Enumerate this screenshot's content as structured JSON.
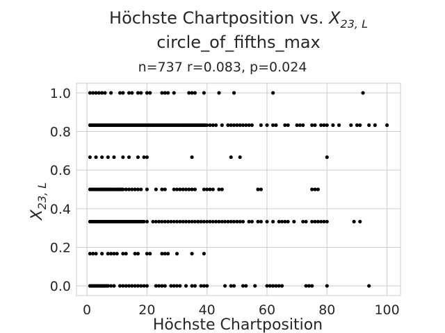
{
  "chart_data": {
    "type": "scatter",
    "title_prefix": "Höchste Chartposition vs. ",
    "title_var": "X",
    "title_sub": "23, L",
    "title_line2": "circle_of_fifths_max",
    "subtitle": "n=737 r=0.083, p=0.024",
    "xlabel": "Höchste Chartposition",
    "ylabel_var": "X",
    "ylabel_sub": "23, L",
    "xlim": [
      -3.5,
      104.5
    ],
    "ylim": [
      -0.05,
      1.05
    ],
    "xticks": [
      0,
      20,
      40,
      60,
      80,
      100
    ],
    "yticks": [
      0.0,
      0.2,
      0.4,
      0.6,
      0.8,
      1.0
    ],
    "ytick_labels": [
      "0.0",
      "0.2",
      "0.4",
      "0.6",
      "0.8",
      "1.0"
    ],
    "grid": true,
    "marker_color": "#000000",
    "series": [
      {
        "y": 1.0,
        "x": [
          1,
          2,
          3,
          4,
          5,
          6,
          8,
          11,
          12,
          14,
          15,
          17,
          18,
          20,
          21,
          25,
          26,
          27,
          29,
          34,
          35,
          36,
          39,
          44,
          49,
          62,
          92
        ]
      },
      {
        "y": 0.833,
        "x": [
          1,
          1.5,
          2,
          2.5,
          3,
          3.5,
          4,
          4.5,
          5,
          5.5,
          6,
          6.5,
          7,
          7.5,
          8,
          8.5,
          9,
          9.5,
          10,
          10.5,
          11,
          11.5,
          12,
          12.5,
          13,
          13.5,
          14,
          14.5,
          15,
          15.5,
          16,
          16.5,
          17,
          17.5,
          18,
          18.5,
          19,
          19.5,
          20,
          20.5,
          21,
          21.5,
          22,
          22.5,
          23,
          23.5,
          24,
          24.5,
          25,
          25.5,
          26,
          26.5,
          27,
          27.5,
          28,
          28.5,
          29,
          29.5,
          30,
          30.5,
          31,
          31.5,
          32,
          32.5,
          33,
          33.5,
          34,
          34.5,
          35,
          35.5,
          36,
          36.5,
          37,
          37.5,
          38,
          38.5,
          39,
          39.5,
          40,
          41,
          42,
          43,
          45,
          47,
          48,
          49,
          50,
          51,
          52,
          53,
          54,
          55,
          58,
          60,
          62,
          63,
          66,
          67,
          70,
          71,
          72,
          75,
          76,
          78,
          79,
          80,
          82,
          84,
          88,
          90,
          91,
          94,
          96,
          100
        ]
      },
      {
        "y": 0.667,
        "x": [
          1,
          3,
          5,
          7,
          9,
          12,
          14,
          17,
          19,
          20,
          35,
          48,
          51,
          80
        ]
      },
      {
        "y": 0.5,
        "x": [
          1,
          1.5,
          2,
          2.5,
          3,
          3.5,
          4,
          4.5,
          5,
          5.5,
          6,
          6.5,
          7,
          7.5,
          8,
          8.5,
          9,
          9.5,
          10,
          10.5,
          11,
          11.5,
          12,
          13,
          14,
          15,
          16,
          17,
          18,
          20,
          23,
          25,
          26,
          29,
          30,
          31,
          32,
          33,
          34,
          35,
          36,
          39,
          40,
          41,
          42,
          44,
          45,
          57,
          58,
          75,
          76,
          77
        ]
      },
      {
        "y": 0.333,
        "x": [
          1,
          1.5,
          2,
          2.5,
          3,
          3.5,
          4,
          4.5,
          5,
          5.5,
          6,
          6.5,
          7,
          7.5,
          8,
          8.5,
          9,
          9.5,
          10,
          10.5,
          11,
          11.5,
          12,
          12.5,
          13,
          13.5,
          14,
          14.5,
          15,
          15.5,
          16,
          16.5,
          17,
          17.5,
          18,
          18.5,
          19,
          20,
          22,
          23,
          24,
          25,
          26,
          27,
          28,
          29,
          30,
          31,
          32,
          33,
          34,
          35,
          36,
          37,
          38,
          39,
          40,
          41,
          42,
          43,
          44,
          45,
          46,
          47,
          48,
          49,
          50,
          51,
          52,
          54,
          55,
          57,
          58,
          60,
          62,
          64,
          65,
          66,
          67,
          69,
          72,
          73,
          75,
          76,
          77,
          78,
          79,
          80,
          89,
          91
        ]
      },
      {
        "y": 0.167,
        "x": [
          1,
          2,
          3,
          5,
          7,
          8,
          9,
          10,
          12,
          13,
          16,
          17,
          20,
          21,
          25,
          26,
          27,
          30,
          35,
          39
        ]
      },
      {
        "y": 0.0,
        "x": [
          1,
          1.5,
          2,
          2.5,
          3,
          3.5,
          4,
          4.5,
          5,
          5.5,
          6,
          6.5,
          7,
          8,
          9,
          11,
          12,
          13,
          14,
          15,
          16,
          17,
          18,
          19,
          20,
          23,
          24,
          25,
          26,
          28,
          29,
          30,
          31,
          33,
          35,
          36,
          38,
          39,
          40,
          46,
          48,
          49,
          52,
          53,
          56,
          60,
          61,
          62,
          63,
          64,
          65,
          73,
          74,
          75,
          80,
          94
        ]
      }
    ]
  }
}
